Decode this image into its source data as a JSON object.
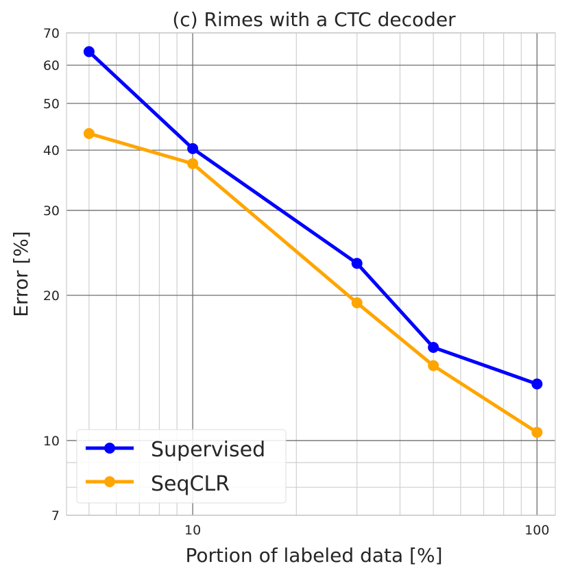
{
  "chart_data": {
    "type": "line",
    "title": "(c) Rimes with a CTC decoder",
    "xlabel": "Portion of labeled data [%]",
    "ylabel": "Error [%]",
    "xscale": "log",
    "yscale": "log",
    "xlim": [
      4.3,
      113
    ],
    "ylim": [
      7,
      70
    ],
    "xticks": [
      10,
      100
    ],
    "xtick_labels": [
      "10",
      "100"
    ],
    "yticks": [
      7,
      10,
      20,
      30,
      40,
      50,
      60,
      70
    ],
    "ytick_labels": [
      "7",
      "10",
      "20",
      "30",
      "40",
      "50",
      "60",
      "70"
    ],
    "grid": true,
    "legend_position": "lower-left",
    "x": [
      5,
      10,
      30,
      50,
      100
    ],
    "series": [
      {
        "name": "Supervised",
        "color": "#0000ff",
        "values": [
          64,
          40.3,
          23.3,
          15.6,
          13.1
        ]
      },
      {
        "name": "SeqCLR",
        "color": "#ffa500",
        "values": [
          43.3,
          37.5,
          19.3,
          14.3,
          10.4
        ]
      }
    ]
  }
}
